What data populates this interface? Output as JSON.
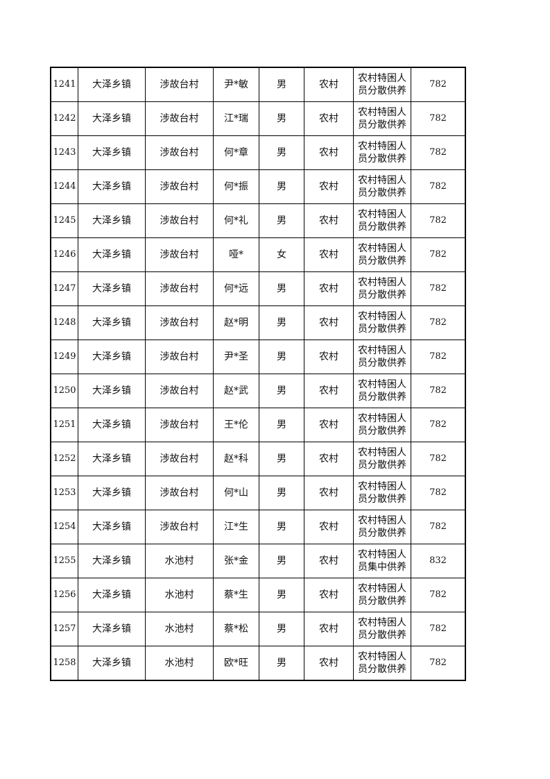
{
  "rows": [
    {
      "no": "1241",
      "town": "大泽乡镇",
      "village": "涉故台村",
      "name": "尹*敏",
      "gender": "男",
      "area": "农村",
      "type": "农村特困人员分散供养",
      "amount": "782"
    },
    {
      "no": "1242",
      "town": "大泽乡镇",
      "village": "涉故台村",
      "name": "江*瑞",
      "gender": "男",
      "area": "农村",
      "type": "农村特困人员分散供养",
      "amount": "782"
    },
    {
      "no": "1243",
      "town": "大泽乡镇",
      "village": "涉故台村",
      "name": "何*章",
      "gender": "男",
      "area": "农村",
      "type": "农村特困人员分散供养",
      "amount": "782"
    },
    {
      "no": "1244",
      "town": "大泽乡镇",
      "village": "涉故台村",
      "name": "何*振",
      "gender": "男",
      "area": "农村",
      "type": "农村特困人员分散供养",
      "amount": "782"
    },
    {
      "no": "1245",
      "town": "大泽乡镇",
      "village": "涉故台村",
      "name": "何*礼",
      "gender": "男",
      "area": "农村",
      "type": "农村特困人员分散供养",
      "amount": "782"
    },
    {
      "no": "1246",
      "town": "大泽乡镇",
      "village": "涉故台村",
      "name": "哑*",
      "gender": "女",
      "area": "农村",
      "type": "农村特困人员分散供养",
      "amount": "782"
    },
    {
      "no": "1247",
      "town": "大泽乡镇",
      "village": "涉故台村",
      "name": "何*远",
      "gender": "男",
      "area": "农村",
      "type": "农村特困人员分散供养",
      "amount": "782"
    },
    {
      "no": "1248",
      "town": "大泽乡镇",
      "village": "涉故台村",
      "name": "赵*明",
      "gender": "男",
      "area": "农村",
      "type": "农村特困人员分散供养",
      "amount": "782"
    },
    {
      "no": "1249",
      "town": "大泽乡镇",
      "village": "涉故台村",
      "name": "尹*圣",
      "gender": "男",
      "area": "农村",
      "type": "农村特困人员分散供养",
      "amount": "782"
    },
    {
      "no": "1250",
      "town": "大泽乡镇",
      "village": "涉故台村",
      "name": "赵*武",
      "gender": "男",
      "area": "农村",
      "type": "农村特困人员分散供养",
      "amount": "782"
    },
    {
      "no": "1251",
      "town": "大泽乡镇",
      "village": "涉故台村",
      "name": "王*伦",
      "gender": "男",
      "area": "农村",
      "type": "农村特困人员分散供养",
      "amount": "782"
    },
    {
      "no": "1252",
      "town": "大泽乡镇",
      "village": "涉故台村",
      "name": "赵*科",
      "gender": "男",
      "area": "农村",
      "type": "农村特困人员分散供养",
      "amount": "782"
    },
    {
      "no": "1253",
      "town": "大泽乡镇",
      "village": "涉故台村",
      "name": "何*山",
      "gender": "男",
      "area": "农村",
      "type": "农村特困人员分散供养",
      "amount": "782"
    },
    {
      "no": "1254",
      "town": "大泽乡镇",
      "village": "涉故台村",
      "name": "江*生",
      "gender": "男",
      "area": "农村",
      "type": "农村特困人员分散供养",
      "amount": "782"
    },
    {
      "no": "1255",
      "town": "大泽乡镇",
      "village": "水池村",
      "name": "张*金",
      "gender": "男",
      "area": "农村",
      "type": "农村特困人员集中供养",
      "amount": "832"
    },
    {
      "no": "1256",
      "town": "大泽乡镇",
      "village": "水池村",
      "name": "蔡*生",
      "gender": "男",
      "area": "农村",
      "type": "农村特困人员分散供养",
      "amount": "782"
    },
    {
      "no": "1257",
      "town": "大泽乡镇",
      "village": "水池村",
      "name": "蔡*松",
      "gender": "男",
      "area": "农村",
      "type": "农村特困人员分散供养",
      "amount": "782"
    },
    {
      "no": "1258",
      "town": "大泽乡镇",
      "village": "水池村",
      "name": "欧*旺",
      "gender": "男",
      "area": "农村",
      "type": "农村特困人员分散供养",
      "amount": "782"
    }
  ]
}
